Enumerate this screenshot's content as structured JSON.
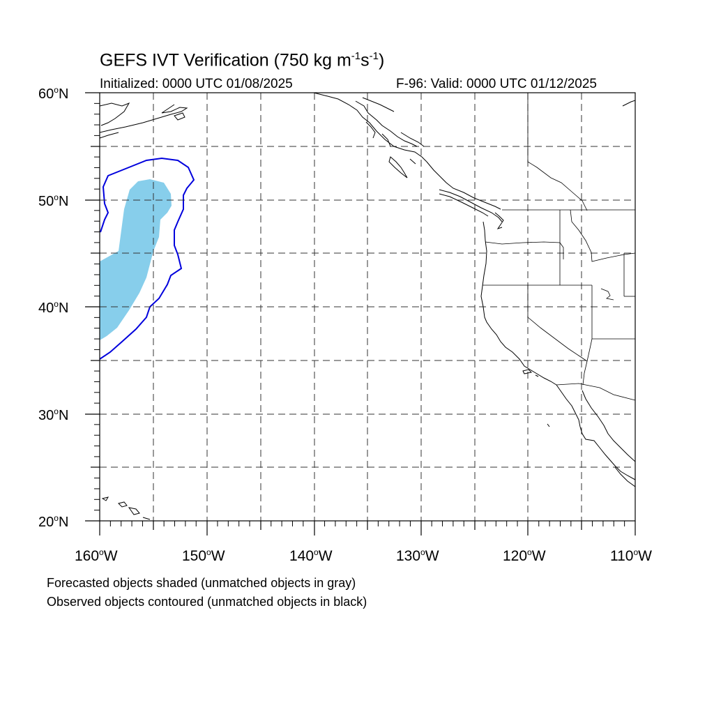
{
  "header": {
    "title_main": "GEFS IVT Verification (750 kg m",
    "title_exp1": "-1",
    "title_mid": "s",
    "title_exp2": "-1",
    "title_end": ")",
    "initialized": "Initialized: 0000 UTC 01/08/2025",
    "valid": "F-96: Valid: 0000 UTC 01/12/2025"
  },
  "axes": {
    "lat_labels": [
      {
        "num": "60",
        "hemi": "N"
      },
      {
        "num": "50",
        "hemi": "N"
      },
      {
        "num": "40",
        "hemi": "N"
      },
      {
        "num": "30",
        "hemi": "N"
      },
      {
        "num": "20",
        "hemi": "N"
      }
    ],
    "lon_labels": [
      {
        "num": "160",
        "hemi": "W"
      },
      {
        "num": "150",
        "hemi": "W"
      },
      {
        "num": "140",
        "hemi": "W"
      },
      {
        "num": "130",
        "hemi": "W"
      },
      {
        "num": "120",
        "hemi": "W"
      },
      {
        "num": "110",
        "hemi": "W"
      }
    ],
    "lon_range": [
      -160,
      -110
    ],
    "lat_range": [
      20,
      60
    ],
    "grid": "dashed every 5 degrees"
  },
  "colors": {
    "forecast_fill": "#87ceeb",
    "observed_contour": "#0000dd",
    "coastline": "#000000"
  },
  "legend": {
    "line1": "Forecasted objects shaded (unmatched objects in gray)",
    "line2": "Observed objects contoured (unmatched objects in black)"
  }
}
